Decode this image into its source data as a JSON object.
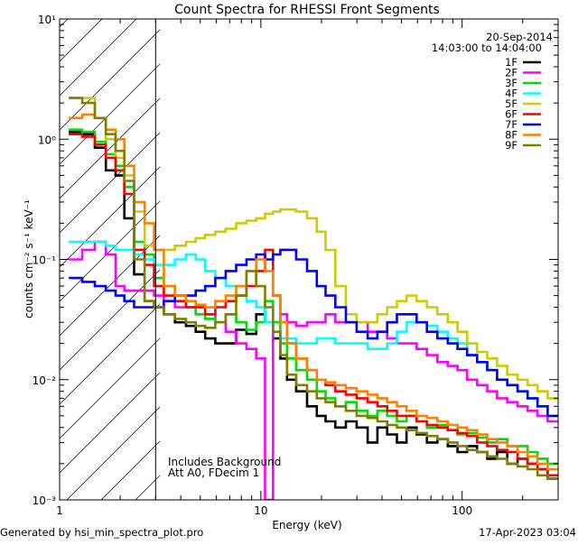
{
  "chart_data": {
    "type": "line",
    "title": "Count Spectra for RHESSI Front Segments",
    "xlabel": "Energy (keV)",
    "ylabel": "counts cm⁻² s⁻¹ keV⁻¹",
    "xscale": "log",
    "yscale": "log",
    "xlim": [
      1,
      300
    ],
    "ylim": [
      0.001,
      10
    ],
    "xticks": [
      {
        "value": 1,
        "label": "1"
      },
      {
        "value": 10,
        "label": "10"
      },
      {
        "value": 100,
        "label": "100"
      }
    ],
    "yticks": [
      {
        "value": 10,
        "label": "10¹"
      },
      {
        "value": 1,
        "label": "10⁰"
      },
      {
        "value": 0.1,
        "label": "10⁻¹"
      },
      {
        "value": 0.01,
        "label": "10⁻²"
      },
      {
        "value": 0.001,
        "label": "10⁻³"
      }
    ],
    "date": "20-Sep-2014",
    "time_range": "14:03:00 to 14:04:00",
    "hatched_region": {
      "from_keV": 1,
      "to_keV": 3
    },
    "annotations": [
      "Includes Background",
      "Att A0, FDecim 1"
    ],
    "series": [
      {
        "name": "1F",
        "color": "#000000",
        "x": [
          1.2,
          1.4,
          1.6,
          1.8,
          2.0,
          2.2,
          2.5,
          2.8,
          3.1,
          3.5,
          4.0,
          4.5,
          5.0,
          5.6,
          6.3,
          7.1,
          8.0,
          9.0,
          10,
          11,
          12,
          13,
          14,
          16,
          18,
          20,
          22,
          25,
          28,
          32,
          36,
          40,
          45,
          50,
          56,
          63,
          71,
          80,
          90,
          100,
          112,
          126,
          141,
          158,
          178,
          200,
          224,
          251,
          282
        ],
        "values": [
          1.15,
          1.1,
          0.85,
          0.55,
          0.5,
          0.22,
          0.075,
          0.045,
          0.04,
          0.035,
          0.03,
          0.028,
          0.025,
          0.022,
          0.02,
          0.02,
          0.026,
          0.024,
          0.035,
          0.03,
          0.022,
          0.015,
          0.01,
          0.008,
          0.006,
          0.005,
          0.0045,
          0.004,
          0.0045,
          0.004,
          0.003,
          0.004,
          0.0035,
          0.003,
          0.004,
          0.0035,
          0.003,
          0.0032,
          0.0028,
          0.0025,
          0.0028,
          0.0025,
          0.0022,
          0.0025,
          0.002,
          0.0022,
          0.002,
          0.0018,
          0.0015
        ]
      },
      {
        "name": "2F",
        "color": "#ff00ff",
        "x": [
          1.2,
          1.4,
          1.6,
          1.8,
          2.0,
          2.2,
          2.5,
          2.8,
          3.1,
          3.5,
          4.0,
          4.5,
          5.0,
          5.6,
          6.3,
          7.1,
          8.0,
          9.0,
          10,
          11,
          12,
          13,
          14,
          16,
          18,
          20,
          22,
          25,
          28,
          32,
          36,
          40,
          45,
          50,
          56,
          63,
          71,
          80,
          90,
          100,
          112,
          126,
          141,
          158,
          178,
          200,
          224,
          251,
          282
        ],
        "values": [
          0.1,
          0.12,
          0.14,
          0.11,
          0.06,
          0.055,
          0.055,
          0.055,
          0.05,
          0.045,
          0.04,
          0.04,
          0.04,
          0.035,
          0.03,
          0.025,
          0.02,
          0.018,
          0.015,
          0.001,
          0.03,
          0.035,
          0.03,
          0.028,
          0.03,
          0.03,
          0.035,
          0.03,
          0.03,
          0.03,
          0.025,
          0.025,
          0.022,
          0.02,
          0.02,
          0.018,
          0.016,
          0.014,
          0.013,
          0.012,
          0.01,
          0.009,
          0.008,
          0.007,
          0.0065,
          0.006,
          0.0055,
          0.005,
          0.0045
        ]
      },
      {
        "name": "3F",
        "color": "#00dd00",
        "x": [
          1.2,
          1.4,
          1.6,
          1.8,
          2.0,
          2.2,
          2.5,
          2.8,
          3.1,
          3.5,
          4.0,
          4.5,
          5.0,
          5.6,
          6.3,
          7.1,
          8.0,
          9.0,
          10,
          11,
          12,
          13,
          14,
          16,
          18,
          20,
          22,
          25,
          28,
          32,
          36,
          40,
          45,
          50,
          56,
          63,
          71,
          80,
          90,
          100,
          112,
          126,
          141,
          158,
          178,
          200,
          224,
          251,
          282
        ],
        "values": [
          1.2,
          1.15,
          0.95,
          0.75,
          0.6,
          0.4,
          0.14,
          0.11,
          0.07,
          0.06,
          0.05,
          0.04,
          0.035,
          0.032,
          0.03,
          0.035,
          0.03,
          0.026,
          0.03,
          0.045,
          0.03,
          0.02,
          0.015,
          0.012,
          0.01,
          0.008,
          0.007,
          0.006,
          0.0065,
          0.0055,
          0.005,
          0.0055,
          0.005,
          0.0045,
          0.005,
          0.0045,
          0.004,
          0.0042,
          0.0038,
          0.0035,
          0.0036,
          0.0033,
          0.003,
          0.0032,
          0.0028,
          0.0028,
          0.0025,
          0.0022,
          0.002
        ]
      },
      {
        "name": "4F",
        "color": "#00ffff",
        "x": [
          1.2,
          1.4,
          1.6,
          1.8,
          2.0,
          2.2,
          2.5,
          2.8,
          3.1,
          3.5,
          4.0,
          4.5,
          5.0,
          5.6,
          6.3,
          7.1,
          8.0,
          9.0,
          10,
          11,
          12,
          13,
          14,
          16,
          18,
          20,
          22,
          25,
          28,
          32,
          36,
          40,
          45,
          50,
          56,
          63,
          71,
          80,
          90,
          100,
          112,
          126,
          141,
          158,
          178,
          200,
          224,
          251,
          282
        ],
        "values": [
          0.14,
          0.14,
          0.14,
          0.13,
          0.12,
          0.12,
          0.11,
          0.1,
          0.09,
          0.09,
          0.1,
          0.11,
          0.1,
          0.08,
          0.07,
          0.06,
          0.05,
          0.045,
          0.04,
          0.03,
          0.025,
          0.022,
          0.022,
          0.02,
          0.02,
          0.022,
          0.022,
          0.02,
          0.02,
          0.02,
          0.018,
          0.018,
          0.02,
          0.025,
          0.03,
          0.03,
          0.028,
          0.025,
          0.022,
          0.02,
          0.016,
          0.014,
          0.012,
          0.01,
          0.009,
          0.008,
          0.007,
          0.006,
          0.005
        ]
      },
      {
        "name": "5F",
        "color": "#cccc00",
        "x": [
          1.2,
          1.4,
          1.6,
          1.8,
          2.0,
          2.2,
          2.5,
          2.8,
          3.1,
          3.5,
          4.0,
          4.5,
          5.0,
          5.6,
          6.3,
          7.1,
          8.0,
          9.0,
          10,
          11,
          12,
          13,
          14,
          16,
          18,
          20,
          22,
          25,
          28,
          32,
          36,
          40,
          45,
          50,
          56,
          63,
          71,
          80,
          90,
          100,
          112,
          126,
          141,
          158,
          178,
          200,
          224,
          251,
          282
        ],
        "values": [
          2.2,
          2.2,
          1.5,
          1.0,
          0.7,
          0.5,
          0.25,
          0.13,
          0.12,
          0.12,
          0.13,
          0.14,
          0.15,
          0.16,
          0.17,
          0.18,
          0.2,
          0.21,
          0.22,
          0.24,
          0.25,
          0.26,
          0.26,
          0.25,
          0.22,
          0.17,
          0.12,
          0.06,
          0.035,
          0.03,
          0.03,
          0.035,
          0.04,
          0.045,
          0.05,
          0.045,
          0.04,
          0.035,
          0.03,
          0.025,
          0.02,
          0.017,
          0.015,
          0.013,
          0.011,
          0.01,
          0.009,
          0.008,
          0.007
        ]
      },
      {
        "name": "6F",
        "color": "#ff0000",
        "x": [
          1.2,
          1.4,
          1.6,
          1.8,
          2.0,
          2.2,
          2.5,
          2.8,
          3.1,
          3.5,
          4.0,
          4.5,
          5.0,
          5.6,
          6.3,
          7.1,
          8.0,
          9.0,
          10,
          11,
          12,
          13,
          14,
          16,
          18,
          20,
          22,
          25,
          28,
          32,
          36,
          40,
          45,
          50,
          56,
          63,
          71,
          80,
          90,
          100,
          112,
          126,
          141,
          158,
          178,
          200,
          224,
          251,
          282
        ],
        "values": [
          1.1,
          1.05,
          0.9,
          0.7,
          0.55,
          0.35,
          0.12,
          0.09,
          0.06,
          0.05,
          0.045,
          0.04,
          0.04,
          0.035,
          0.04,
          0.045,
          0.05,
          0.06,
          0.08,
          0.12,
          0.05,
          0.03,
          0.02,
          0.015,
          0.012,
          0.01,
          0.009,
          0.008,
          0.0075,
          0.007,
          0.0065,
          0.006,
          0.0055,
          0.005,
          0.005,
          0.0045,
          0.0042,
          0.004,
          0.0038,
          0.0036,
          0.0034,
          0.003,
          0.0028,
          0.0026,
          0.0025,
          0.0022,
          0.002,
          0.0018,
          0.0016
        ]
      },
      {
        "name": "7F",
        "color": "#0000ff",
        "x": [
          1.2,
          1.4,
          1.6,
          1.8,
          2.0,
          2.2,
          2.5,
          2.8,
          3.1,
          3.5,
          4.0,
          4.5,
          5.0,
          5.6,
          6.3,
          7.1,
          8.0,
          9.0,
          10,
          11,
          12,
          13,
          14,
          16,
          18,
          20,
          22,
          25,
          28,
          32,
          36,
          40,
          45,
          50,
          56,
          63,
          71,
          80,
          90,
          100,
          112,
          126,
          141,
          158,
          178,
          200,
          224,
          251,
          282
        ],
        "values": [
          0.07,
          0.065,
          0.06,
          0.055,
          0.05,
          0.045,
          0.04,
          0.04,
          0.04,
          0.045,
          0.05,
          0.05,
          0.055,
          0.06,
          0.07,
          0.08,
          0.09,
          0.1,
          0.11,
          0.1,
          0.11,
          0.12,
          0.12,
          0.1,
          0.08,
          0.06,
          0.05,
          0.04,
          0.03,
          0.025,
          0.022,
          0.025,
          0.03,
          0.035,
          0.035,
          0.03,
          0.025,
          0.022,
          0.02,
          0.018,
          0.016,
          0.014,
          0.012,
          0.01,
          0.009,
          0.008,
          0.007,
          0.006,
          0.005
        ]
      },
      {
        "name": "8F",
        "color": "#ff8000",
        "x": [
          1.2,
          1.4,
          1.6,
          1.8,
          2.0,
          2.2,
          2.5,
          2.8,
          3.1,
          3.5,
          4.0,
          4.5,
          5.0,
          5.6,
          6.3,
          7.1,
          8.0,
          9.0,
          10,
          11,
          12,
          13,
          14,
          16,
          18,
          20,
          22,
          25,
          28,
          32,
          36,
          40,
          45,
          50,
          56,
          63,
          71,
          80,
          90,
          100,
          112,
          126,
          141,
          158,
          178,
          200,
          224,
          251,
          282
        ],
        "values": [
          1.5,
          1.6,
          1.5,
          1.2,
          1.0,
          0.6,
          0.3,
          0.2,
          0.12,
          0.06,
          0.05,
          0.045,
          0.042,
          0.04,
          0.045,
          0.05,
          0.06,
          0.08,
          0.1,
          0.08,
          0.05,
          0.03,
          0.02,
          0.015,
          0.012,
          0.01,
          0.0095,
          0.009,
          0.0085,
          0.008,
          0.0075,
          0.007,
          0.0065,
          0.006,
          0.0055,
          0.005,
          0.0048,
          0.0045,
          0.0042,
          0.004,
          0.0038,
          0.0035,
          0.0032,
          0.003,
          0.0028,
          0.0025,
          0.0023,
          0.002,
          0.0018
        ]
      },
      {
        "name": "9F",
        "color": "#808000",
        "x": [
          1.2,
          1.4,
          1.6,
          1.8,
          2.0,
          2.2,
          2.5,
          2.8,
          3.1,
          3.5,
          4.0,
          4.5,
          5.0,
          5.6,
          6.3,
          7.1,
          8.0,
          9.0,
          10,
          11,
          12,
          13,
          14,
          16,
          18,
          20,
          22,
          25,
          28,
          32,
          36,
          40,
          45,
          50,
          56,
          63,
          71,
          80,
          90,
          100,
          112,
          126,
          141,
          158,
          178,
          200,
          224,
          251,
          282
        ],
        "values": [
          2.2,
          2.0,
          1.5,
          1.1,
          0.8,
          0.45,
          0.1,
          0.045,
          0.04,
          0.035,
          0.032,
          0.03,
          0.028,
          0.027,
          0.03,
          0.035,
          0.05,
          0.08,
          0.06,
          0.04,
          0.025,
          0.016,
          0.011,
          0.009,
          0.008,
          0.007,
          0.0065,
          0.006,
          0.0055,
          0.005,
          0.0048,
          0.0045,
          0.0042,
          0.004,
          0.0038,
          0.0036,
          0.0034,
          0.0032,
          0.003,
          0.0028,
          0.0026,
          0.0025,
          0.0023,
          0.0022,
          0.002,
          0.0019,
          0.0018,
          0.0016,
          0.0015
        ]
      }
    ]
  },
  "footer": {
    "generator": "Generated by hsi_min_spectra_plot.pro",
    "timestamp": "17-Apr-2023 03:04"
  }
}
